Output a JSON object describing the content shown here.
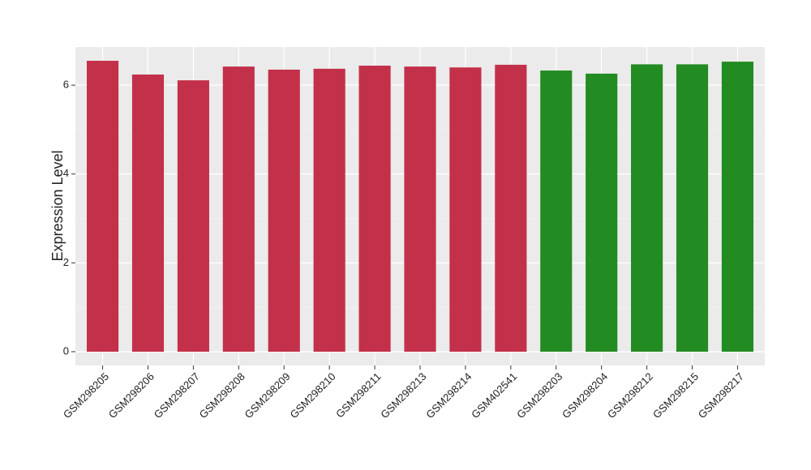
{
  "chart_data": {
    "type": "bar",
    "y_label": "Expression Level",
    "categories": [
      "GSM298205",
      "GSM298206",
      "GSM298207",
      "GSM298208",
      "GSM298209",
      "GSM298210",
      "GSM298211",
      "GSM298213",
      "GSM298214",
      "GSM402541",
      "GSM298203",
      "GSM298204",
      "GSM298212",
      "GSM298215",
      "GSM298217"
    ],
    "values": [
      6.55,
      6.24,
      6.11,
      6.42,
      6.35,
      6.37,
      6.44,
      6.42,
      6.4,
      6.46,
      6.33,
      6.26,
      6.47,
      6.47,
      6.53
    ],
    "colors": [
      "#c3304a",
      "#c3304a",
      "#c3304a",
      "#c3304a",
      "#c3304a",
      "#c3304a",
      "#c3304a",
      "#c3304a",
      "#c3304a",
      "#c3304a",
      "#228b22",
      "#228b22",
      "#228b22",
      "#228b22",
      "#228b22"
    ],
    "ylim": [
      -0.31,
      6.86
    ],
    "yticks": [
      0,
      2,
      4,
      6
    ],
    "minor_yticks": [
      1,
      3,
      5
    ],
    "grid": true
  }
}
